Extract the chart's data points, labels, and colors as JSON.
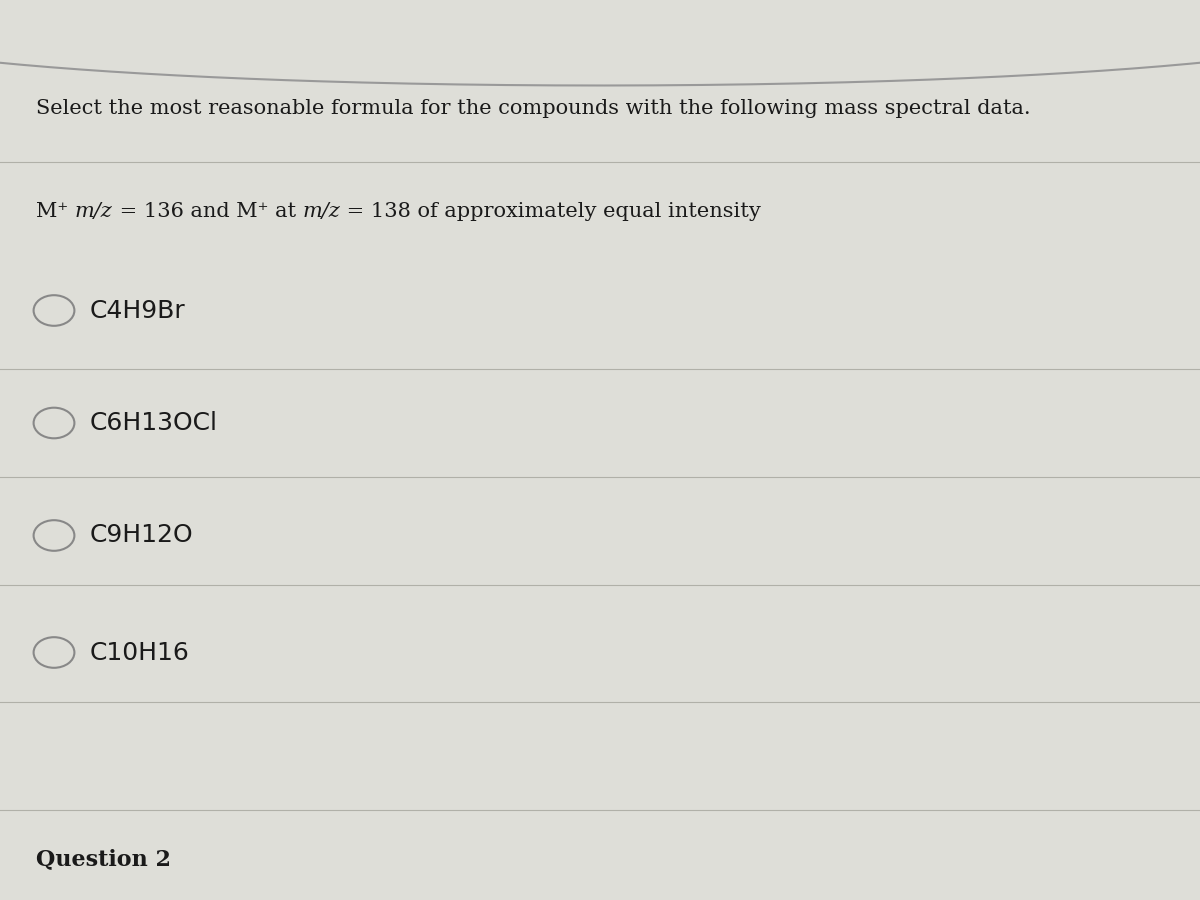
{
  "title_line1": "Select the most reasonable formula for the compounds with the following mass spectral data.",
  "options": [
    "C4H9Br",
    "C6H13OCl",
    "C9H12O",
    "C10H16"
  ],
  "footer": "Question 2",
  "bg_color": "#deded8",
  "text_color": "#1a1a1a",
  "line_color": "#b0b0a8",
  "circle_color": "#888888",
  "title_fontsize": 15.0,
  "option_fontsize": 18,
  "footer_fontsize": 16,
  "subtitle_fontsize": 15.0
}
